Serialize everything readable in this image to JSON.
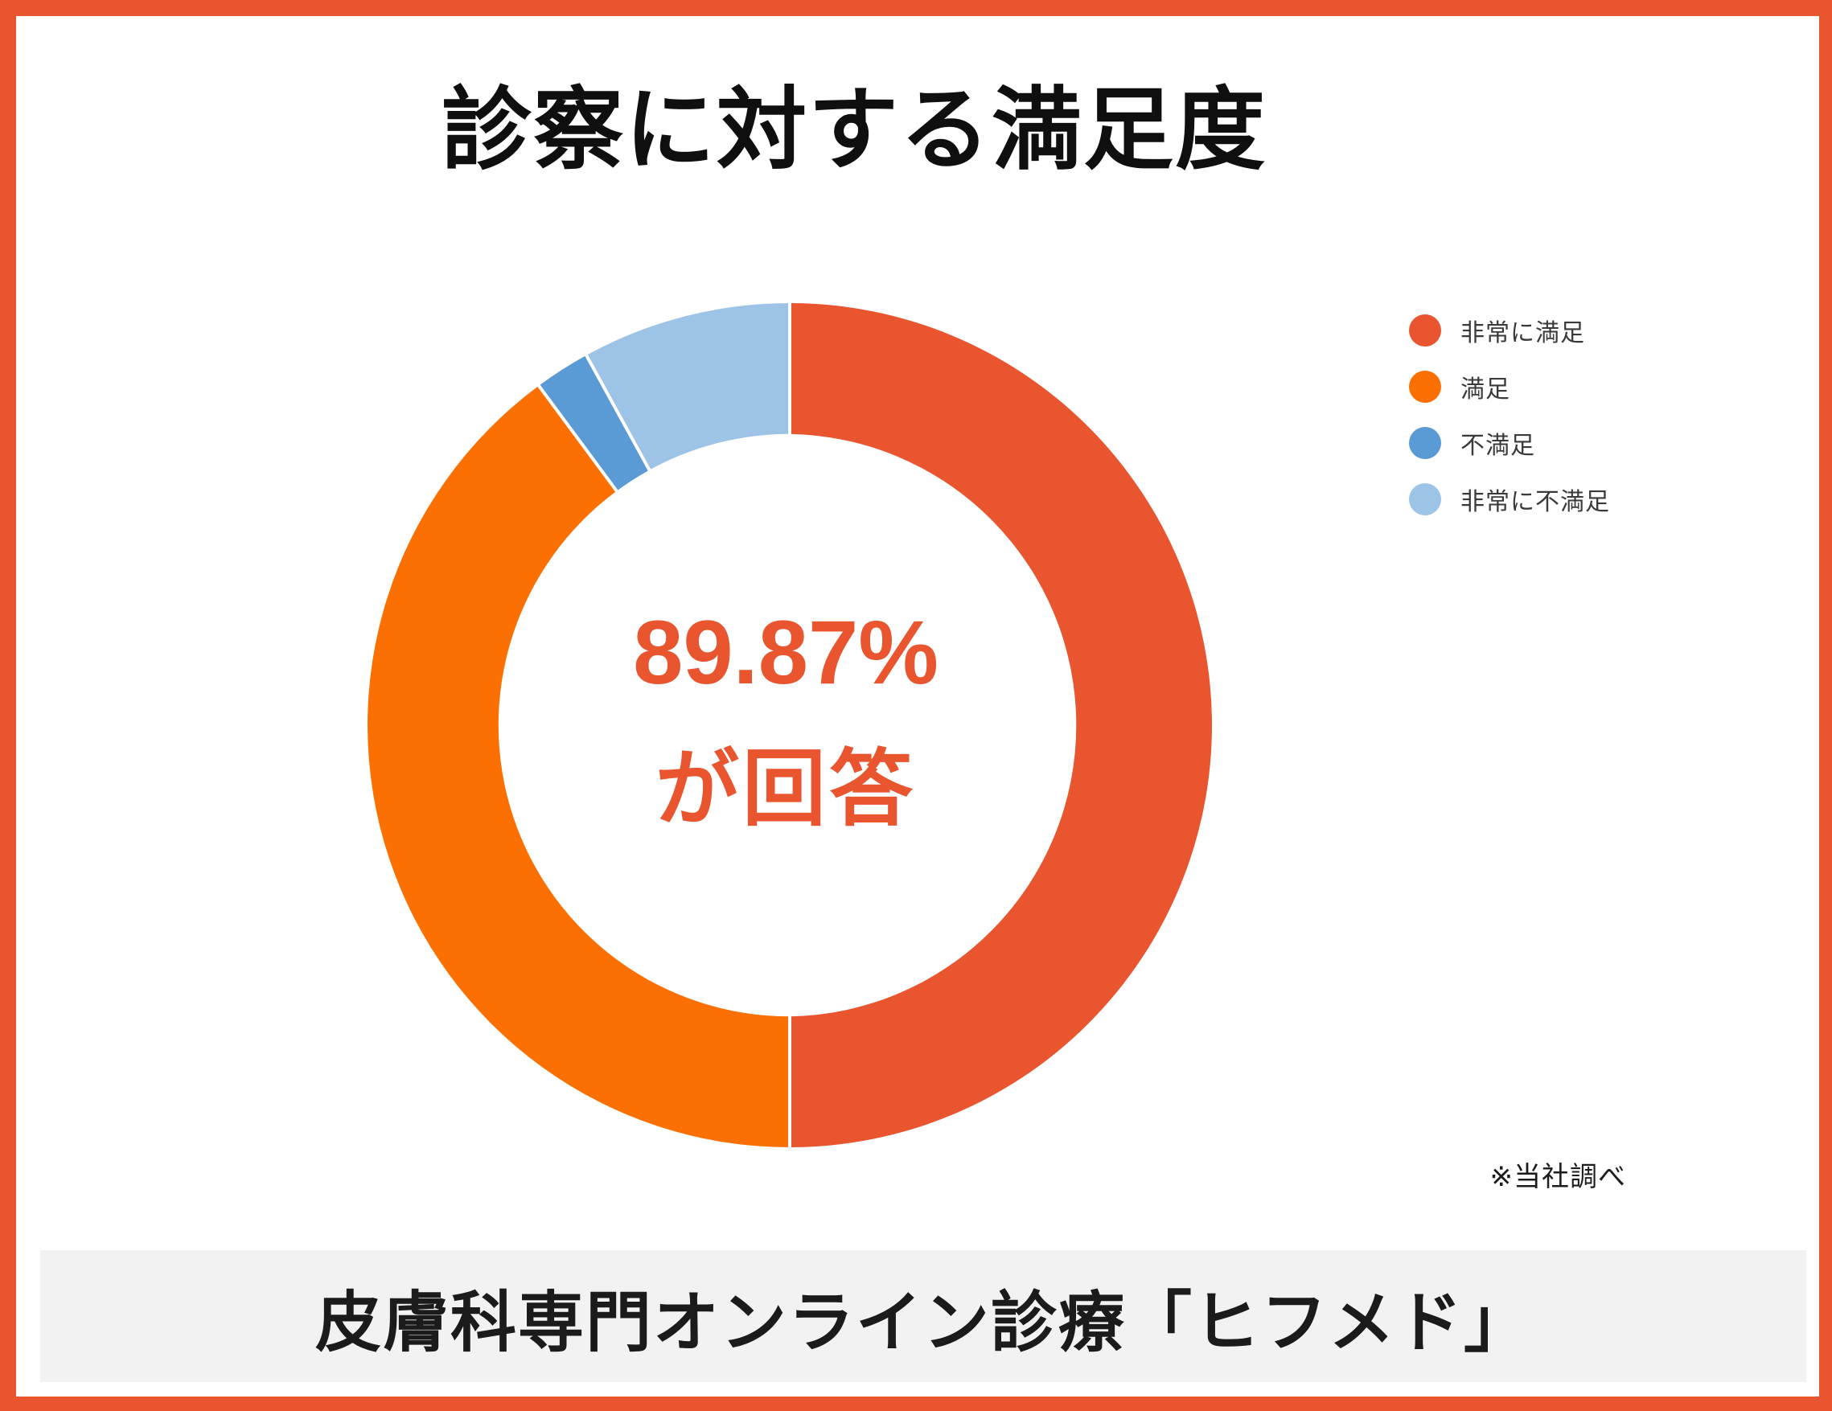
{
  "header": {
    "title": "診察に対する満足度"
  },
  "chart_data": {
    "type": "pie",
    "variant": "donut",
    "title": "診察に対する満足度",
    "labels": [
      "非常に満足",
      "満足",
      "不満足",
      "非常に不満足"
    ],
    "values": [
      50.0,
      39.87,
      2.13,
      8.0
    ],
    "colors": [
      "#E8552F",
      "#FB7000",
      "#5B9BD5",
      "#9DC3E6"
    ],
    "start_angle_deg": 0,
    "direction": "clockwise",
    "inner_radius_ratio": 0.69,
    "separator_color": "#FFFFFF",
    "legend_position": "right",
    "center_label": "89.87% が回答"
  },
  "donut_center": {
    "line1": "89.87%",
    "line2": "が回答"
  },
  "source_note": "※当社調べ",
  "footer": {
    "title": "皮膚科専門オンライン診療「ヒフメド」"
  },
  "colors": {
    "accent": "#E8552F",
    "frame": "#E8552F",
    "footer_background": "#F2F2F2",
    "title_text": "#0F0F0F",
    "legend_text": "#3A3A3A"
  }
}
